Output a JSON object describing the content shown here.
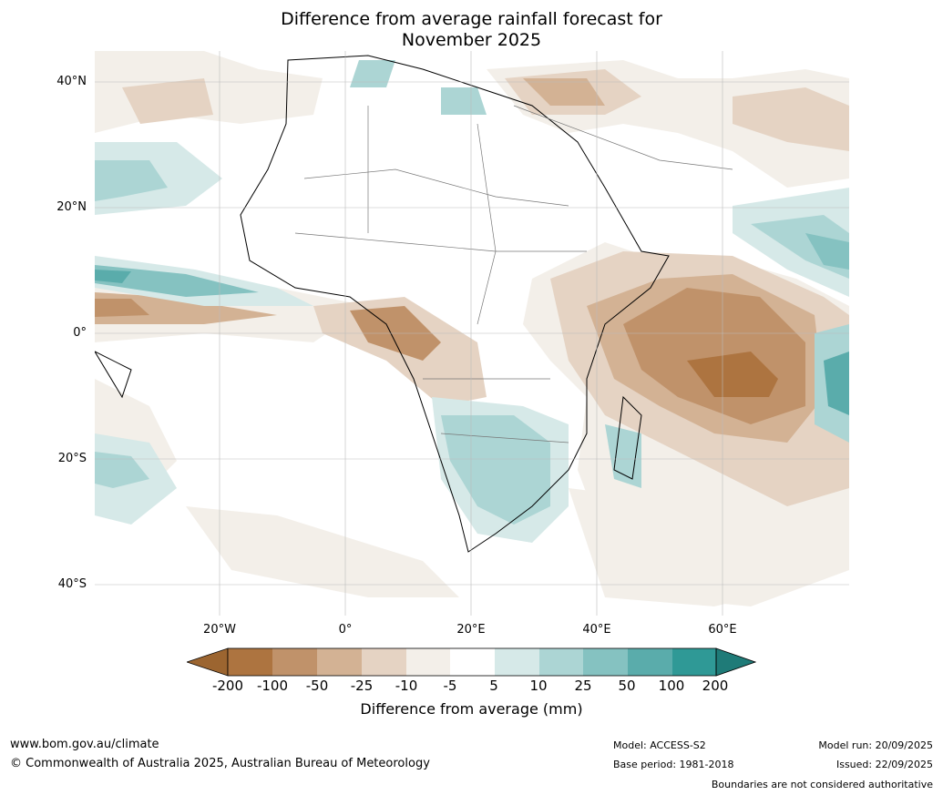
{
  "title_line1": "Difference from average rainfall forecast for",
  "title_line2": "November 2025",
  "lat_labels": [
    "40°N",
    "20°N",
    "0°",
    "20°S",
    "40°S"
  ],
  "lon_labels": [
    "20°W",
    "0°",
    "20°E",
    "40°E",
    "60°E"
  ],
  "legend": {
    "title": "Difference from average (mm)",
    "ticks": [
      "-200",
      "-100",
      "-50",
      "-25",
      "-10",
      "-5",
      "5",
      "10",
      "25",
      "50",
      "100",
      "200"
    ],
    "colors": [
      "#9c6530",
      "#ad7440",
      "#c0926a",
      "#d3b294",
      "#e5d3c3",
      "#f3efe9",
      "#ffffff",
      "#d6e9e8",
      "#acd5d4",
      "#85c2c1",
      "#5aacab",
      "#2f9996",
      "#1f7b78"
    ]
  },
  "footer": {
    "website": "www.bom.gov.au/climate",
    "copyright": "© Commonwealth of Australia 2025, Australian Bureau of Meteorology",
    "model": "Model: ACCESS-S2",
    "base_period": "Base period: 1981-2018",
    "model_run": "Model run: 20/09/2025",
    "issued": "Issued: 22/09/2025",
    "disclaimer": "Boundaries are not considered authoritative"
  }
}
